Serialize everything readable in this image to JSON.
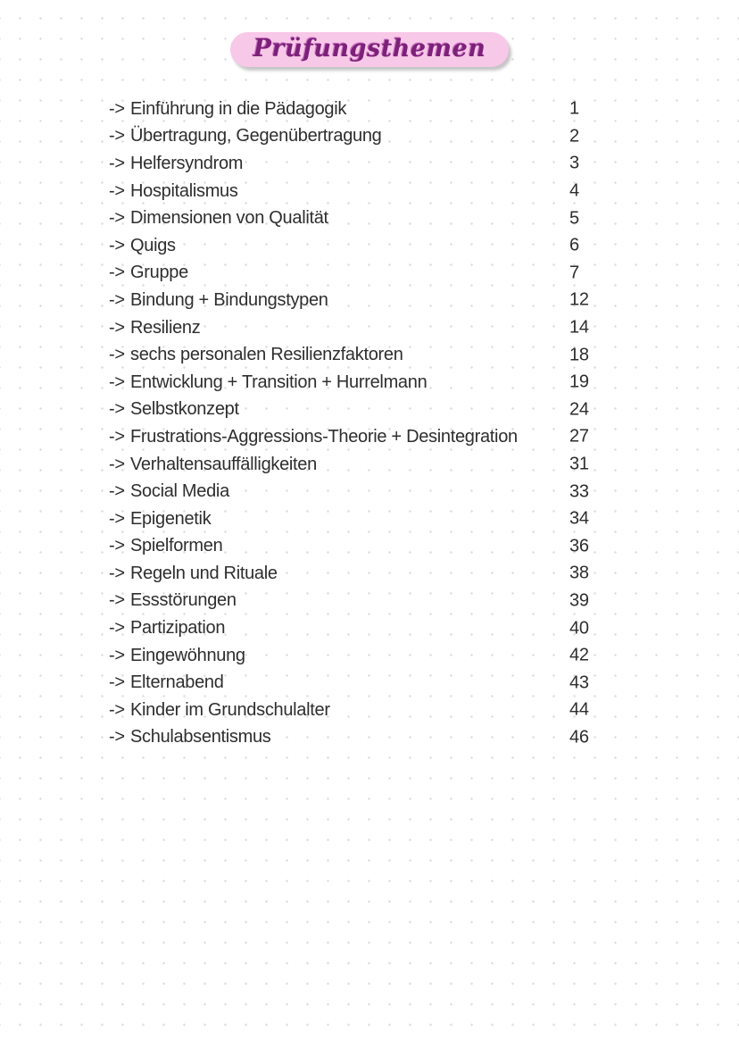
{
  "page": {
    "title": "Prüfungsthemen",
    "colors": {
      "background": "#ffffff",
      "dot_grid": "#dcdcdc",
      "ink": "#2e2e2e",
      "title_text": "#7c2178",
      "title_text_accent": "#c871c2",
      "title_highlight": "#f8c8e8"
    }
  },
  "toc": {
    "arrow": "->",
    "items": [
      {
        "label": "Einführung in die Pädagogik",
        "page": "1"
      },
      {
        "label": "Übertragung, Gegenübertragung",
        "page": "2"
      },
      {
        "label": "Helfersyndrom",
        "page": "3"
      },
      {
        "label": "Hospitalismus",
        "page": "4"
      },
      {
        "label": "Dimensionen von Qualität",
        "page": "5"
      },
      {
        "label": "Quigs",
        "page": "6"
      },
      {
        "label": "Gruppe",
        "page": "7"
      },
      {
        "label": "Bindung + Bindungstypen",
        "page": "12"
      },
      {
        "label": "Resilienz",
        "page": "14"
      },
      {
        "label": "sechs personalen Resilienzfaktoren",
        "page": "18"
      },
      {
        "label": "Entwicklung + Transition + Hurrelmann",
        "page": "19"
      },
      {
        "label": "Selbstkonzept",
        "page": "24"
      },
      {
        "label": "Frustrations-Aggressions-Theorie + Desintegration",
        "page": "27"
      },
      {
        "label": "Verhaltensauffälligkeiten",
        "page": "31"
      },
      {
        "label": "Social Media",
        "page": "33"
      },
      {
        "label": "Epigenetik",
        "page": "34"
      },
      {
        "label": "Spielformen",
        "page": "36"
      },
      {
        "label": "Regeln und Rituale",
        "page": "38"
      },
      {
        "label": "Essstörungen",
        "page": "39"
      },
      {
        "label": "Partizipation",
        "page": "40"
      },
      {
        "label": "Eingewöhnung",
        "page": "42"
      },
      {
        "label": "Elternabend",
        "page": "43"
      },
      {
        "label": "Kinder im Grundschulalter",
        "page": "44"
      },
      {
        "label": "Schulabsentismus",
        "page": "46"
      }
    ]
  }
}
